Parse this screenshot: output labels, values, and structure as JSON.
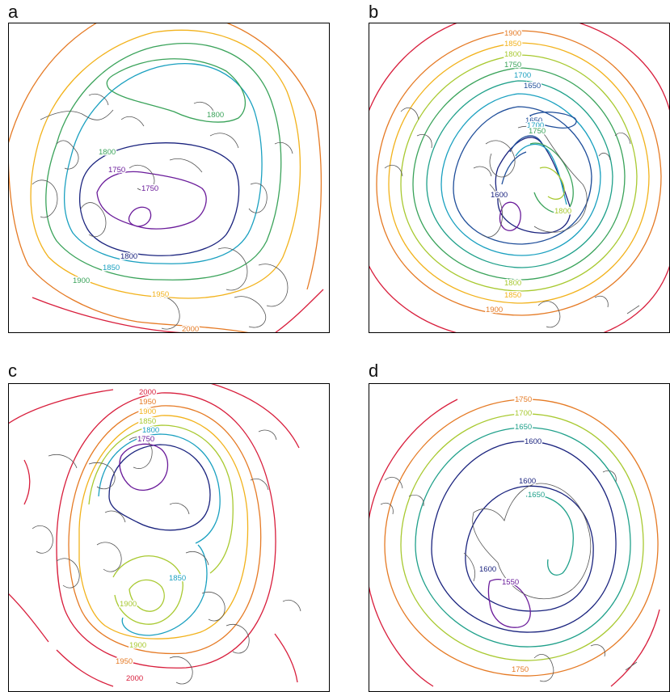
{
  "colors": {
    "1550": "#6a1b9a",
    "1600": "#1a237e",
    "1650": "#1f4e9a",
    "1700": "#1aa0c0",
    "1750": "#1fa08a",
    "1800": "#3aa35a",
    "1850": "#a8c930",
    "1900": "#f2b21b",
    "1950": "#e57a24",
    "2000": "#d81e3c"
  },
  "panels": [
    {
      "letter": "a",
      "labels": [
        {
          "text": "1800",
          "level": "1800"
        },
        {
          "text": "1800",
          "level": "1800"
        },
        {
          "text": "1750",
          "level": "1550"
        },
        {
          "text": "1750",
          "level": "1550"
        },
        {
          "text": "1800",
          "level": "1600"
        },
        {
          "text": "1850",
          "level": "1700"
        },
        {
          "text": "1900",
          "level": "1800"
        },
        {
          "text": "1950",
          "level": "1900"
        },
        {
          "text": "2000",
          "level": "1950"
        }
      ]
    },
    {
      "letter": "b",
      "labels": [
        {
          "text": "1900",
          "level": "1950"
        },
        {
          "text": "1850",
          "level": "1900"
        },
        {
          "text": "1800",
          "level": "1850"
        },
        {
          "text": "1750",
          "level": "1800"
        },
        {
          "text": "1700",
          "level": "1700"
        },
        {
          "text": "1650",
          "level": "1650"
        },
        {
          "text": "1650",
          "level": "1650"
        },
        {
          "text": "1700",
          "level": "1700"
        },
        {
          "text": "1750",
          "level": "1800"
        },
        {
          "text": "1600",
          "level": "1600"
        },
        {
          "text": "1800",
          "level": "1850"
        },
        {
          "text": "1800",
          "level": "1850"
        },
        {
          "text": "1850",
          "level": "1900"
        },
        {
          "text": "1900",
          "level": "1950"
        }
      ]
    },
    {
      "letter": "c",
      "labels": [
        {
          "text": "2000",
          "level": "2000"
        },
        {
          "text": "1950",
          "level": "1950"
        },
        {
          "text": "1900",
          "level": "1900"
        },
        {
          "text": "1850",
          "level": "1850"
        },
        {
          "text": "1800",
          "level": "1700"
        },
        {
          "text": "1750",
          "level": "1550"
        },
        {
          "text": "1850",
          "level": "1700"
        },
        {
          "text": "1900",
          "level": "1850"
        },
        {
          "text": "1900",
          "level": "1850"
        },
        {
          "text": "1950",
          "level": "1950"
        },
        {
          "text": "2000",
          "level": "2000"
        }
      ]
    },
    {
      "letter": "d",
      "labels": [
        {
          "text": "1750",
          "level": "1950"
        },
        {
          "text": "1700",
          "level": "1850"
        },
        {
          "text": "1650",
          "level": "1750"
        },
        {
          "text": "1600",
          "level": "1600"
        },
        {
          "text": "1600",
          "level": "1600"
        },
        {
          "text": "1650",
          "level": "1750"
        },
        {
          "text": "1600",
          "level": "1600"
        },
        {
          "text": "1550",
          "level": "1550"
        },
        {
          "text": "1750",
          "level": "1950"
        }
      ]
    }
  ]
}
